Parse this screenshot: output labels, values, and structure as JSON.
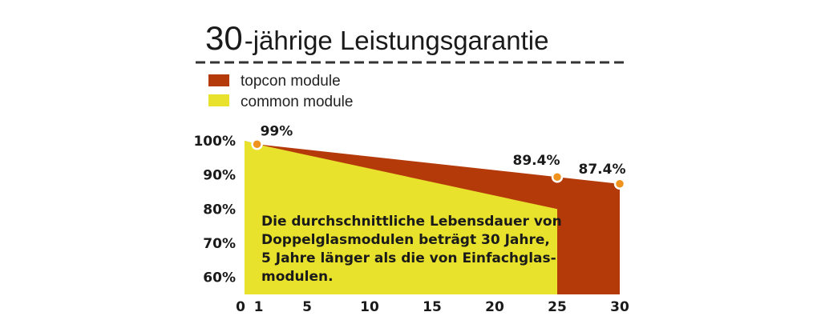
{
  "title": {
    "number": "30",
    "rest": "-jährige Leistungsgarantie"
  },
  "colors": {
    "topcon": "#b53a0a",
    "common": "#e8e22c",
    "marker": "#f0921e",
    "highlight_tick": "#c1440e",
    "text": "#1a1a1a"
  },
  "legend": [
    {
      "label": "topcon module",
      "color": "#b53a0a"
    },
    {
      "label": "common module",
      "color": "#e8e22c"
    }
  ],
  "note_lines": [
    "Die durchschnittliche Lebensdauer von",
    "Doppelglasmodulen beträgt 30 Jahre,",
    "5 Jahre länger als die von Einfachglas-",
    "modulen."
  ],
  "chart_data": {
    "type": "area",
    "title": "30-jährige Leistungsgarantie",
    "xlabel": "",
    "ylabel": "",
    "x_ticks": [
      "0",
      "1",
      "5",
      "10",
      "15",
      "20",
      "25",
      "30"
    ],
    "x_tick_values": [
      0,
      1,
      5,
      10,
      15,
      20,
      25,
      30
    ],
    "x_highlight_ticks": [
      "25",
      "30"
    ],
    "y_ticks": [
      "60%",
      "70%",
      "80%",
      "90%",
      "100%"
    ],
    "y_tick_values": [
      60,
      70,
      80,
      90,
      100
    ],
    "xlim": [
      0,
      30
    ],
    "ylim": [
      55,
      100
    ],
    "grid": false,
    "legend_position": "top-left",
    "series": [
      {
        "name": "topcon module",
        "x": [
          0,
          1,
          25,
          30
        ],
        "y": [
          100,
          99,
          89.4,
          87.4
        ]
      },
      {
        "name": "common module",
        "x": [
          0,
          1,
          25
        ],
        "y": [
          100,
          99,
          80
        ]
      }
    ],
    "point_labels": [
      {
        "series": "topcon module",
        "x": 1,
        "y": 99,
        "label": "99%"
      },
      {
        "series": "topcon module",
        "x": 25,
        "y": 89.4,
        "label": "89.4%"
      },
      {
        "series": "topcon module",
        "x": 30,
        "y": 87.4,
        "label": "87.4%"
      }
    ]
  }
}
